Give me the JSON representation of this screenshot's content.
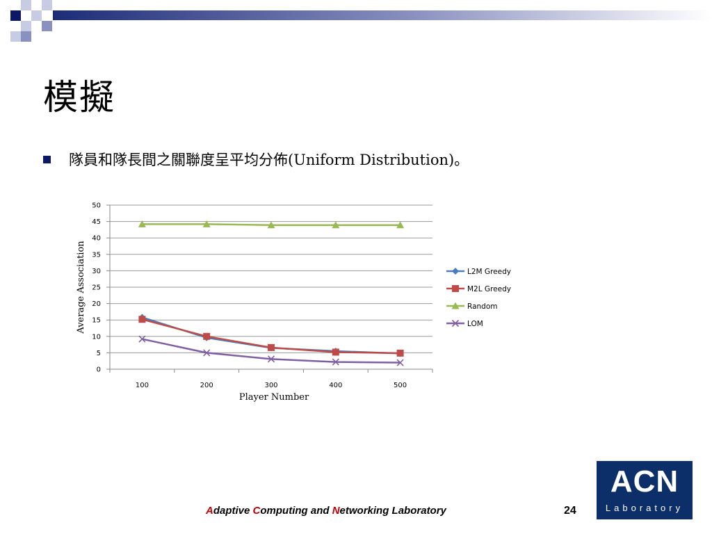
{
  "slide": {
    "title": "模擬",
    "bullet": "隊員和隊長間之關聯度呈平均分佈(Uniform Distribution)。"
  },
  "footer": {
    "parts": [
      {
        "text": "A",
        "cap": true
      },
      {
        "text": "daptive ",
        "cap": false
      },
      {
        "text": "C",
        "cap": true
      },
      {
        "text": "omputing and ",
        "cap": false
      },
      {
        "text": "N",
        "cap": true
      },
      {
        "text": "etworking Laboratory",
        "cap": false
      }
    ],
    "page_number": "24"
  },
  "logo": {
    "main": "ACN",
    "sub": "Laboratory"
  },
  "colors": {
    "accent_dark": "#0c1a66",
    "logo_bg": "#0c2f6a",
    "footer_caps": "#c00000"
  },
  "chart_data": {
    "type": "line",
    "categories": [
      "100",
      "200",
      "300",
      "400",
      "500"
    ],
    "xlabel": "Player Number",
    "ylabel": "Average Association",
    "ylim": [
      0,
      50
    ],
    "yticks": [
      "0",
      "5",
      "10",
      "15",
      "20",
      "25",
      "30",
      "35",
      "40",
      "45",
      "50"
    ],
    "grid": true,
    "legend_position": "right",
    "series": [
      {
        "name": "L2M Greedy",
        "values": [
          15.8,
          9.6,
          6.5,
          5.5,
          4.8
        ],
        "color": "#4a7ebb",
        "marker": "diamond"
      },
      {
        "name": "M2L Greedy",
        "values": [
          15.2,
          10.0,
          6.6,
          5.2,
          4.9
        ],
        "color": "#be4b48",
        "marker": "square"
      },
      {
        "name": "Random",
        "values": [
          44.2,
          44.2,
          43.9,
          43.9,
          43.9
        ],
        "color": "#98b954",
        "marker": "triangle"
      },
      {
        "name": "LOM",
        "values": [
          9.2,
          5.0,
          3.1,
          2.2,
          2.0
        ],
        "color": "#7e5fa2",
        "marker": "x"
      }
    ]
  }
}
